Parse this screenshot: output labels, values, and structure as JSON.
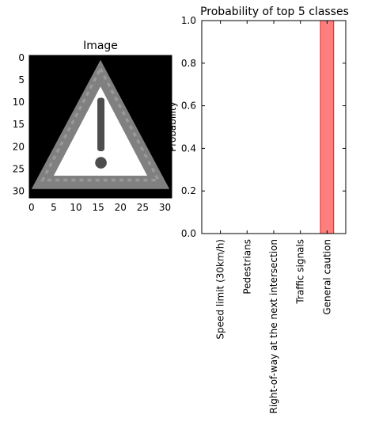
{
  "chart_data": [
    {
      "type": "image",
      "title": "Image",
      "xticks": [
        0,
        5,
        10,
        15,
        20,
        25,
        30
      ],
      "yticks": [
        0,
        5,
        10,
        15,
        20,
        25,
        30
      ],
      "xlim": [
        -0.5,
        31.5
      ],
      "ylim": [
        31.5,
        -0.5
      ],
      "image": "grayscale traffic sign: white triangle with gray border and dark gray exclamation mark on black background"
    },
    {
      "type": "bar",
      "title": "Probability of top 5 classes",
      "ylabel": "Probability",
      "xlabel": "",
      "categories": [
        "Speed limit (30km/h)",
        "Pedestrians",
        "Right-of-way at the next intersection",
        "Traffic signals",
        "General caution"
      ],
      "values": [
        0.0,
        0.0,
        0.0,
        0.0,
        1.0
      ],
      "ylim": [
        0.0,
        1.0
      ],
      "yticks": [
        "0.0",
        "0.2",
        "0.4",
        "0.6",
        "0.8",
        "1.0"
      ],
      "bar_color": "#ff7f7f",
      "grid": false
    }
  ]
}
